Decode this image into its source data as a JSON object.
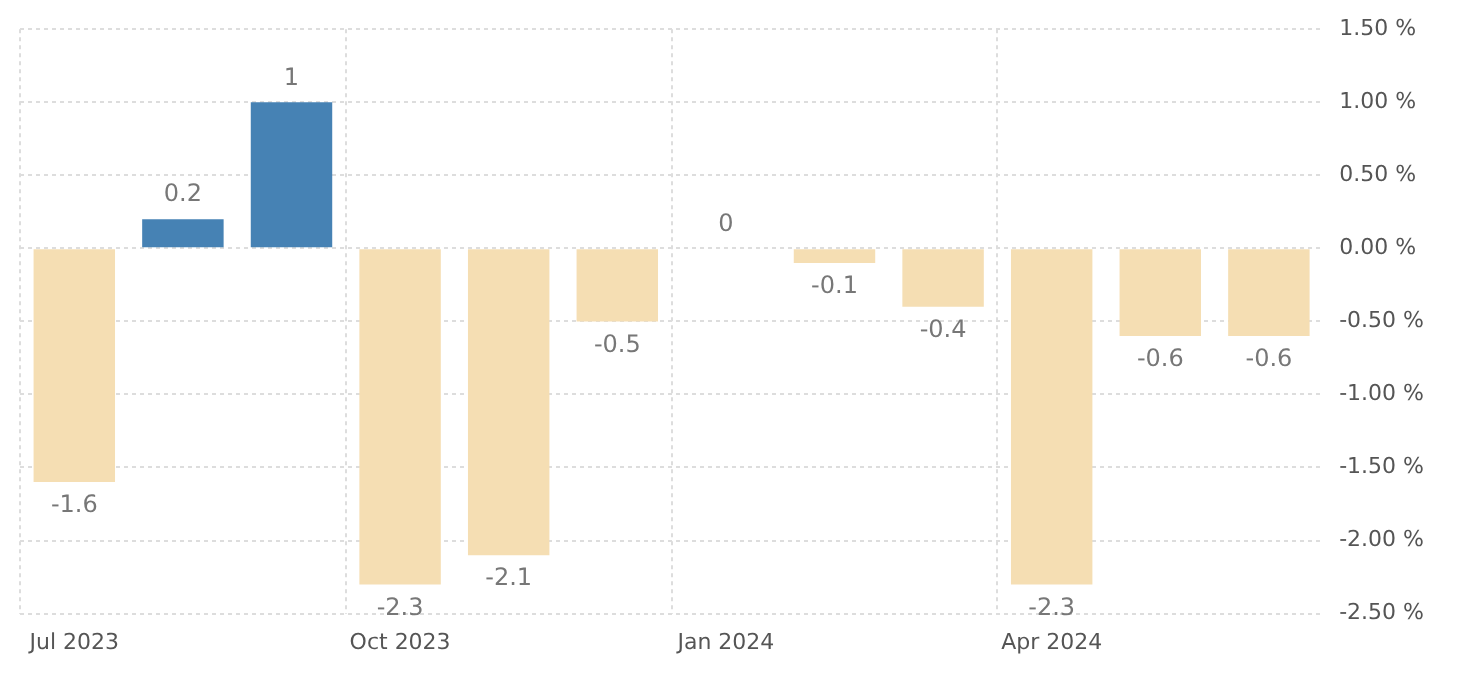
{
  "chart_data": {
    "type": "bar",
    "categories": [
      "Jul 2023",
      null,
      null,
      "Oct 2023",
      null,
      null,
      "Jan 2024",
      null,
      null,
      "Apr 2024",
      null,
      null
    ],
    "values": [
      -1.6,
      0.2,
      1,
      -2.3,
      -2.1,
      -0.5,
      0,
      -0.1,
      -0.4,
      -2.3,
      -0.6,
      -0.6
    ],
    "colors": [
      "#f5deb3",
      "#4682b4",
      "#4682b4",
      "#f5deb3",
      "#f5deb3",
      "#f5deb3",
      "#f5deb3",
      "#f5deb3",
      "#f5deb3",
      "#f5deb3",
      "#f5deb3",
      "#f5deb3"
    ],
    "ylim": [
      -2.5,
      1.5
    ],
    "yticks": [
      {
        "value": -2.5,
        "label": "-2.50 %"
      },
      {
        "value": -2,
        "label": "-2.00 %"
      },
      {
        "value": -1.5,
        "label": "-1.50 %"
      },
      {
        "value": -1,
        "label": "-1.00 %"
      },
      {
        "value": -0.5,
        "label": "-0.50 %"
      },
      {
        "value": 0,
        "label": "0.00 %"
      },
      {
        "value": 0.5,
        "label": "0.50 %"
      },
      {
        "value": 1,
        "label": "1.00 %"
      },
      {
        "value": 1.5,
        "label": "1.50 %"
      }
    ],
    "data_labels": true,
    "grid": true,
    "legend": false
  }
}
